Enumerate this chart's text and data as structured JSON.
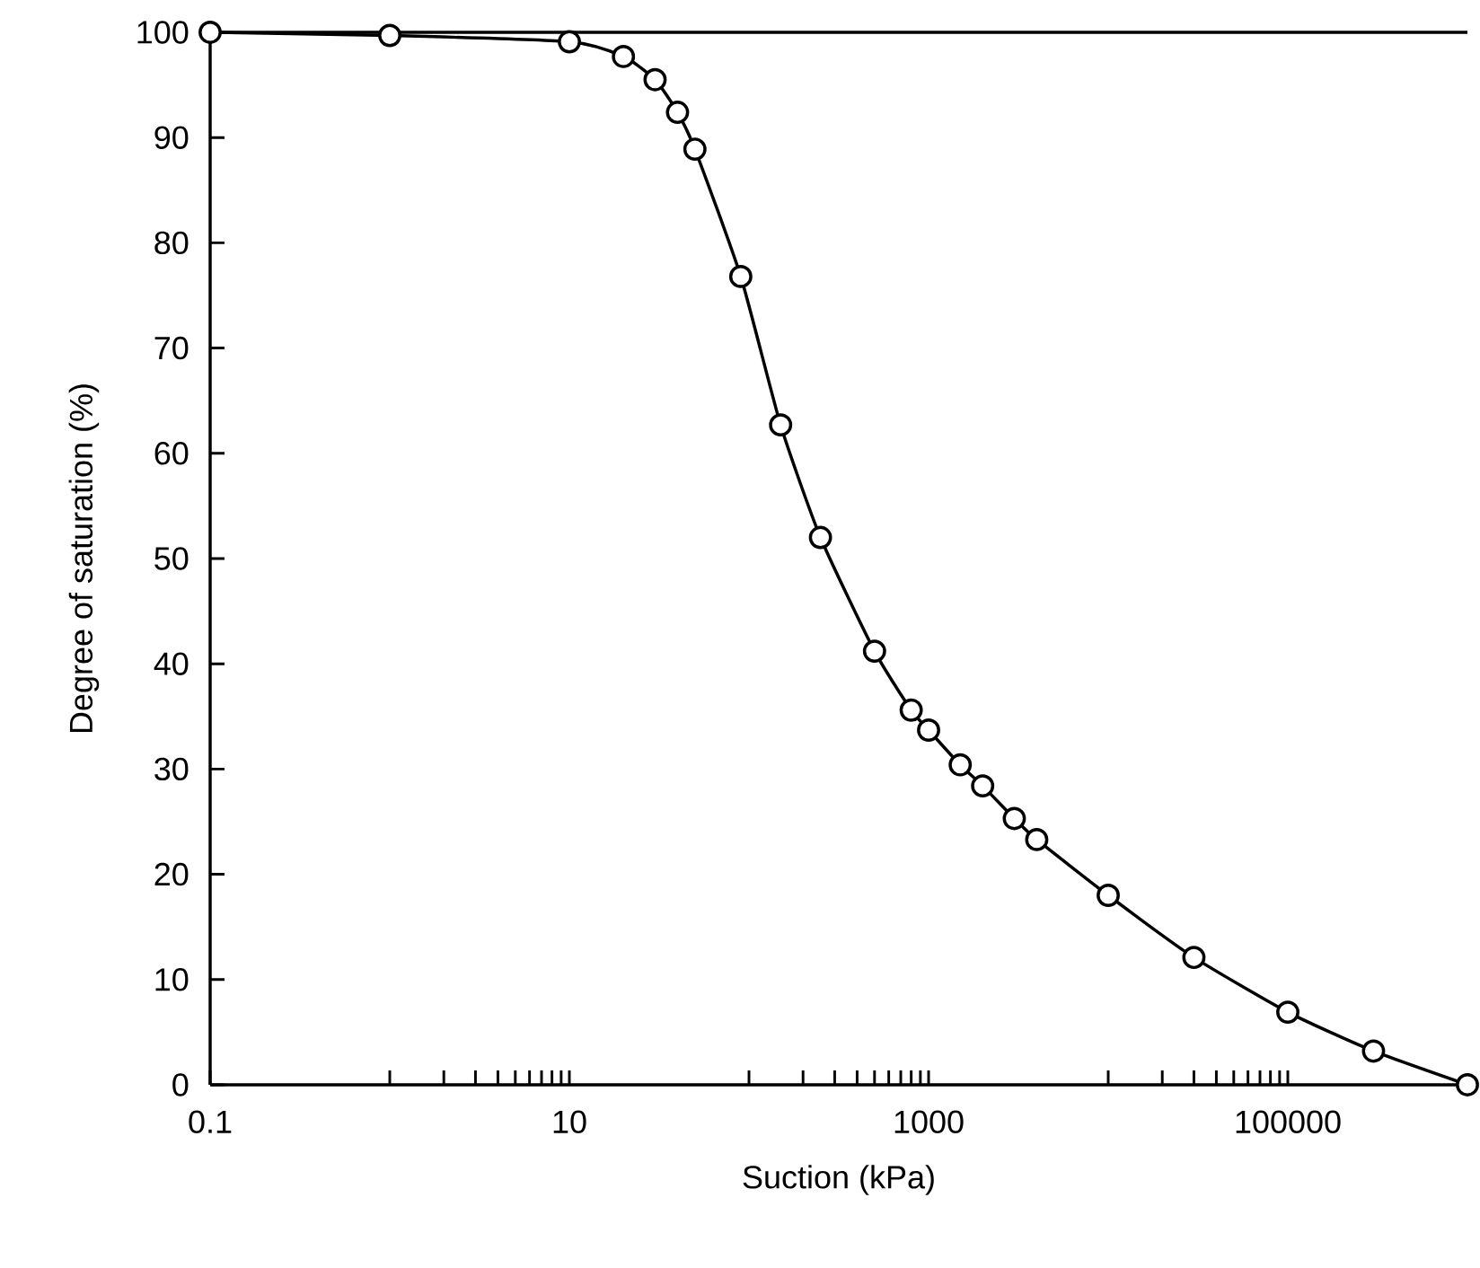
{
  "chart_data": {
    "type": "line",
    "xlabel": "Suction (kPa)",
    "ylabel": "Degree of saturation (%)",
    "log": "x",
    "marker": "circle",
    "line_style": "solid",
    "x": [
      0.1,
      1,
      10,
      20,
      30,
      40,
      50,
      90,
      150,
      250,
      500,
      800,
      1000,
      1500,
      2000,
      3000,
      4000,
      10000,
      30000,
      100000,
      300000,
      1000000
    ],
    "series": [
      {
        "color": "#000000",
        "values": [
          100,
          99.7,
          99.1,
          97.7,
          95.5,
          92.4,
          88.9,
          76.8,
          62.7,
          52.0,
          41.2,
          35.6,
          33.7,
          30.4,
          28.4,
          25.3,
          23.3,
          18.0,
          12.1,
          6.9,
          3.2,
          0
        ]
      }
    ],
    "xlim": [
      0.1,
      1000000
    ],
    "xticks": [
      0.1,
      10,
      1000,
      100000
    ],
    "ylim": [
      0,
      100
    ],
    "yticks": [
      0,
      10,
      20,
      30,
      40,
      50,
      60,
      70,
      80,
      90,
      100
    ]
  }
}
